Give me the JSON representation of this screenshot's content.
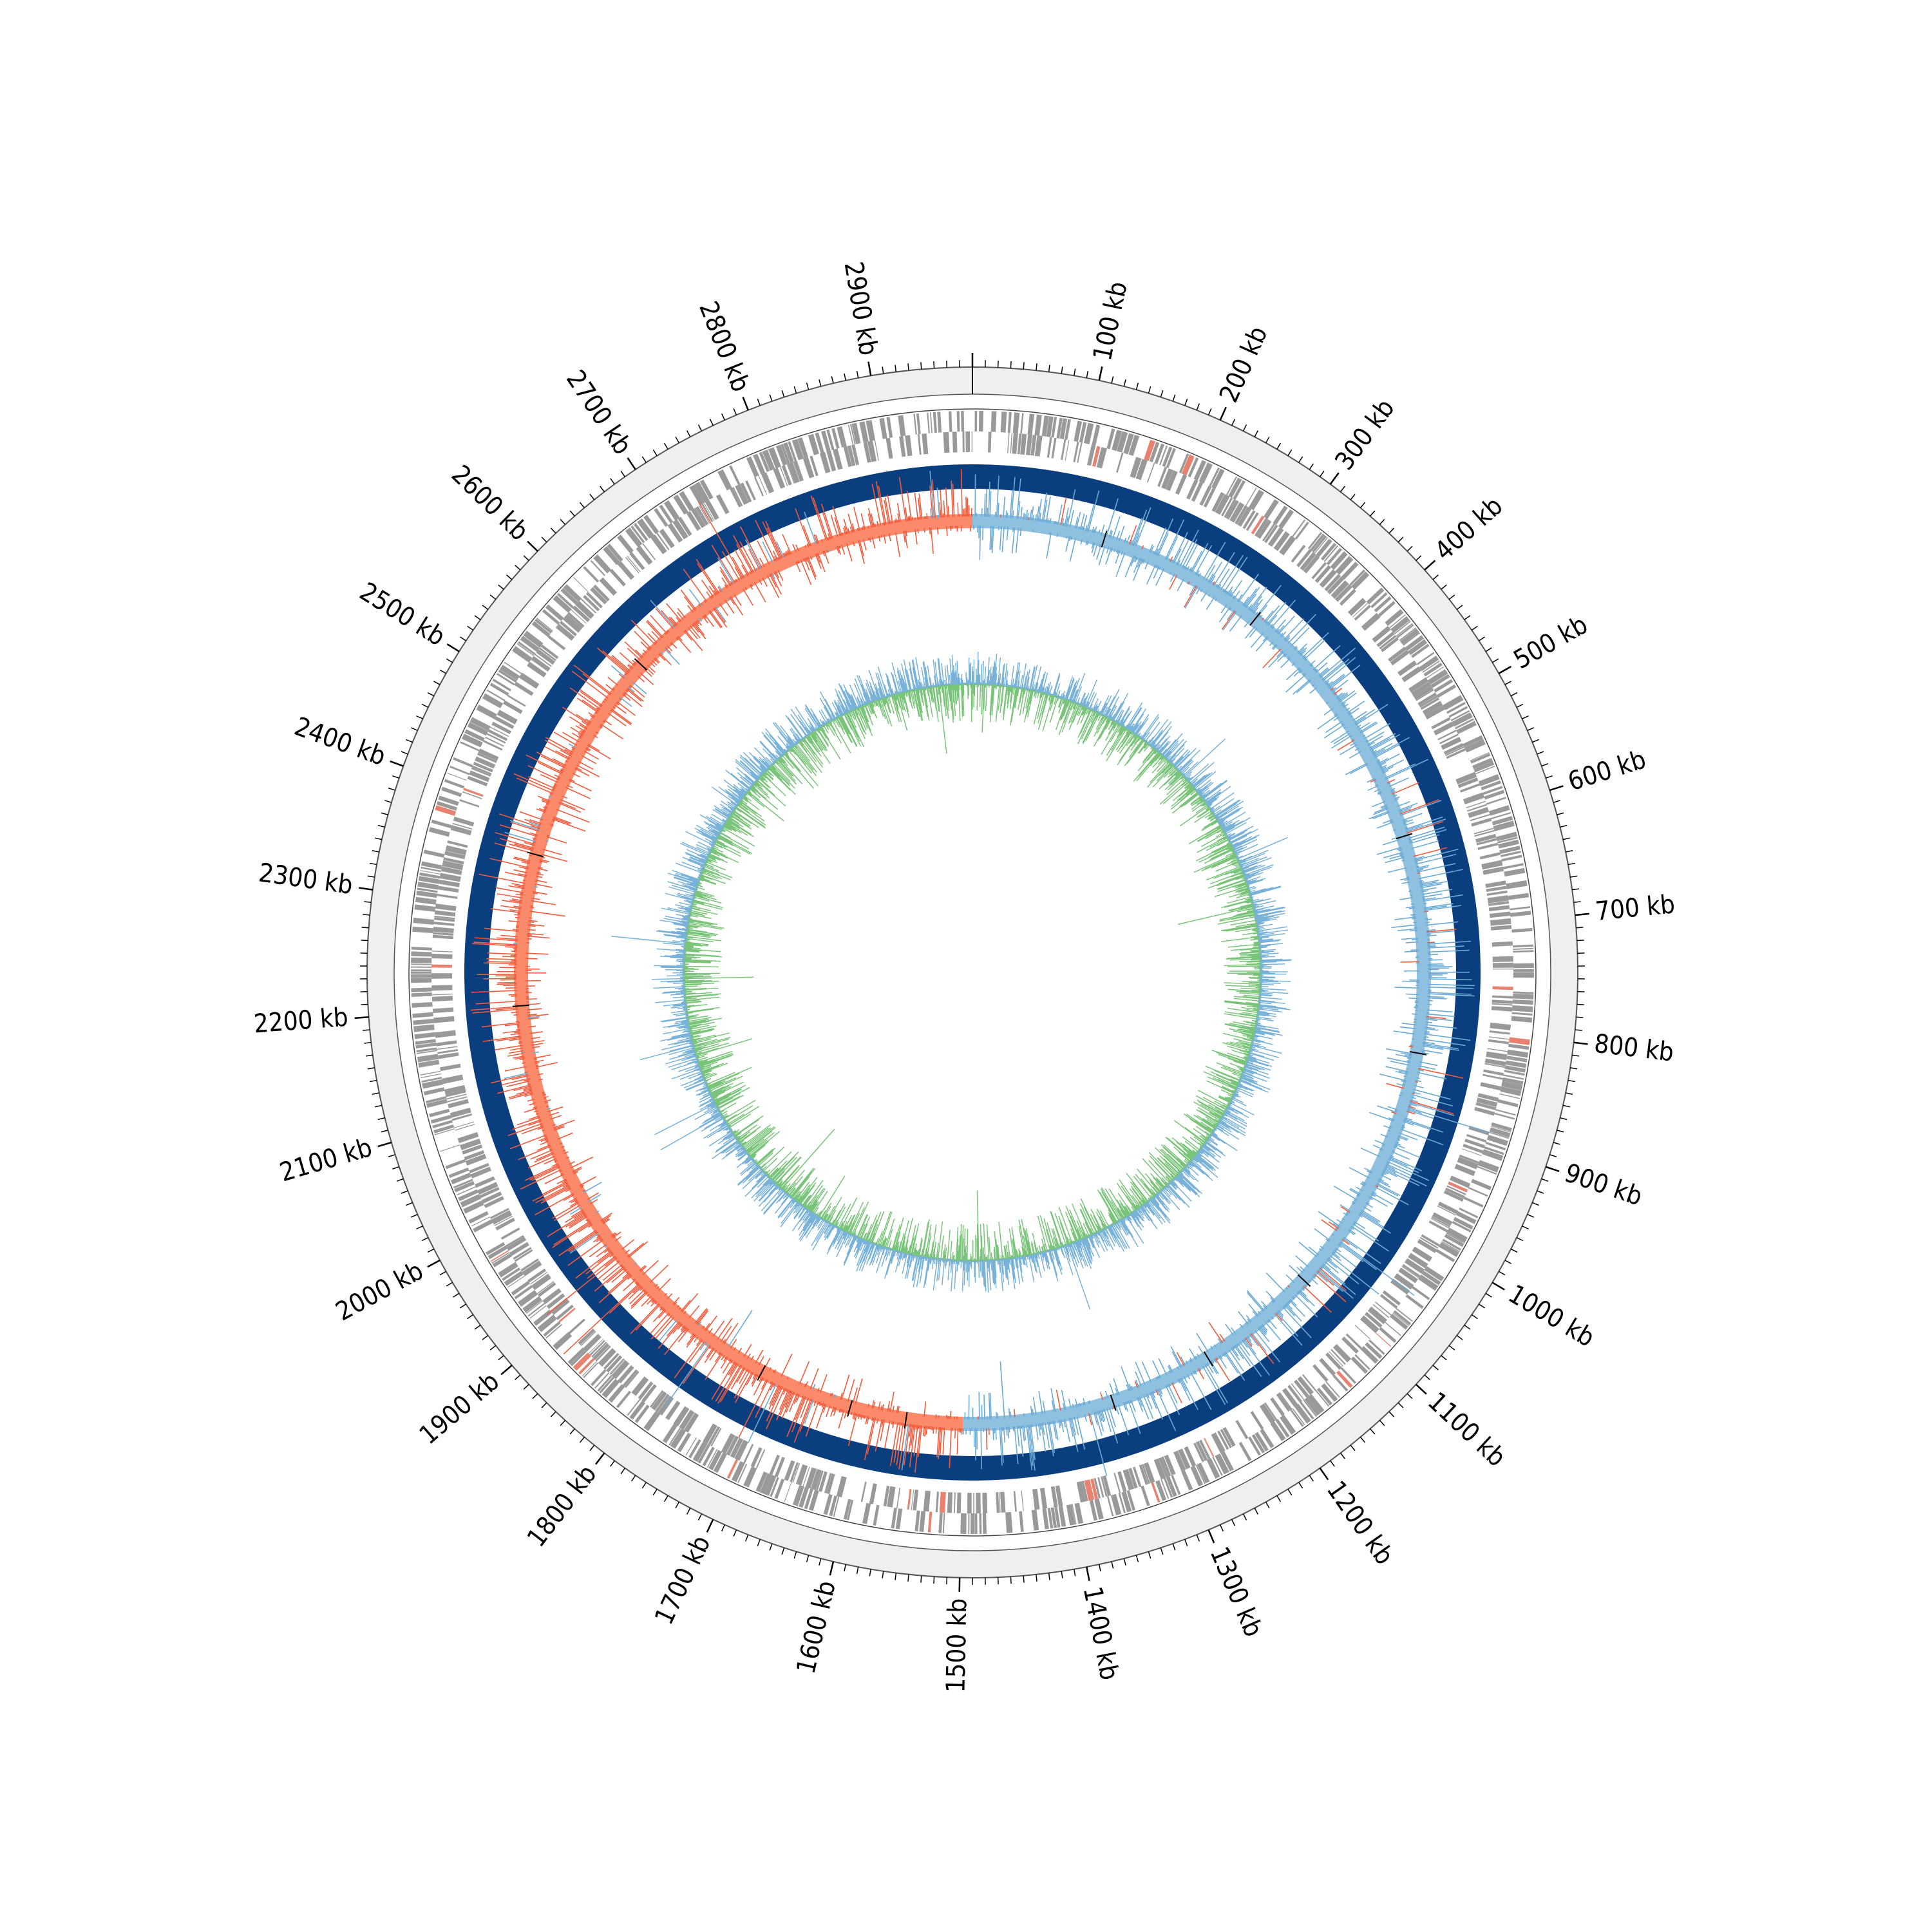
{
  "genome": {
    "length_kb": 2980,
    "label_step_kb": 100,
    "minor_tick_kb": 10,
    "unit": "kb",
    "tick_labels": [
      "100 kb",
      "200 kb",
      "300 kb",
      "400 kb",
      "500 kb",
      "600 kb",
      "700 kb",
      "800 kb",
      "900 kb",
      "1000 kb",
      "1100 kb",
      "1200 kb",
      "1300 kb",
      "1400 kb",
      "1500 kb",
      "1600 kb",
      "1700 kb",
      "1800 kb",
      "1900 kb",
      "2000 kb",
      "2100 kb",
      "2200 kb",
      "2300 kb",
      "2400 kb",
      "2500 kb",
      "2600 kb",
      "2700 kb",
      "2800 kb",
      "2900 kb"
    ]
  },
  "tracks": [
    {
      "name": "coordinate-ring",
      "color": "#efefef"
    },
    {
      "name": "cds-features",
      "color": "#999999",
      "highlight_color": "#e8826e"
    },
    {
      "name": "solid-band",
      "color": "#0b3e7e"
    },
    {
      "name": "gc-skew",
      "positive_color": "#8fc0df",
      "negative_color": "#fb8a6a",
      "positive_spike": "#6aaad4",
      "negative_spike": "#f25a3c",
      "switch_kb": 1500
    },
    {
      "name": "gc-content",
      "color": "#79b2d8",
      "inner_color": "#7ac47a"
    }
  ]
}
